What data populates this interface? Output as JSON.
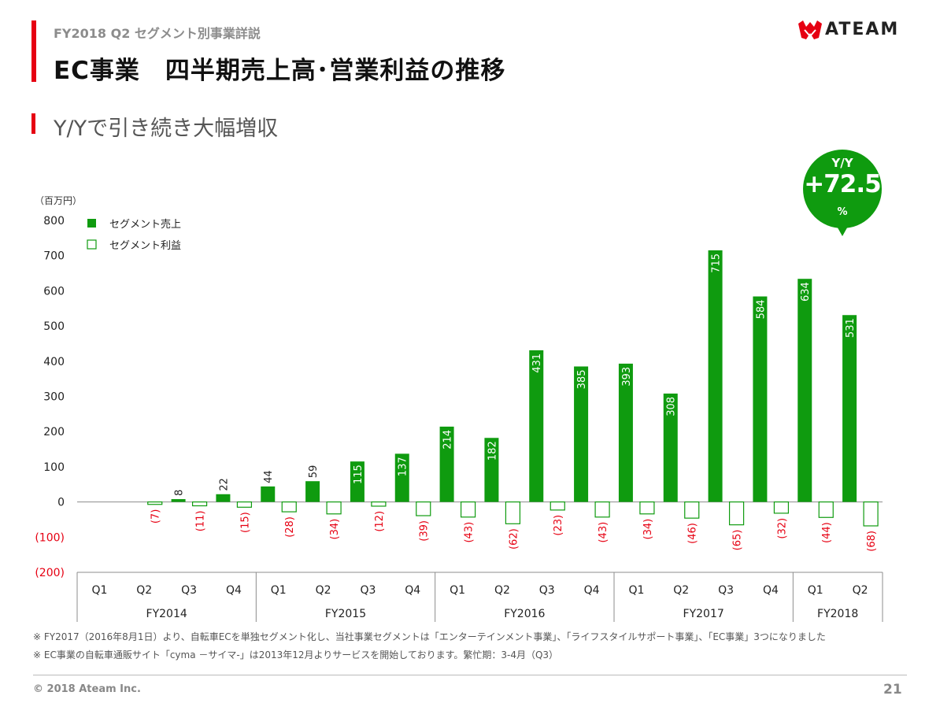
{
  "header": {
    "section": "FY2018 Q2 セグメント別事業詳説",
    "title": "EC事業　四半期売上高･営業利益の推移",
    "subtitle": "Y/Yで引き続き大幅増収",
    "logo_text": "ATEAM"
  },
  "colors": {
    "accent_red": "#e60012",
    "bar_green": "#0f9b0f",
    "negative_label": "#e60012"
  },
  "yy_badge": {
    "label": "Y/Y",
    "value": "+72.5",
    "unit": "%"
  },
  "chart_data": {
    "type": "bar",
    "unit_label": "（百万円）",
    "ylim": [
      -200,
      800
    ],
    "yticks": [
      800,
      700,
      600,
      500,
      400,
      300,
      200,
      100,
      0,
      -100,
      -200
    ],
    "ytick_labels": [
      "800",
      "700",
      "600",
      "500",
      "400",
      "300",
      "200",
      "100",
      "0",
      "(100)",
      "(200)"
    ],
    "grid": false,
    "legend_position": "top-left",
    "categories": [
      "Q1",
      "Q2",
      "Q3",
      "Q4",
      "Q1",
      "Q2",
      "Q3",
      "Q4",
      "Q1",
      "Q2",
      "Q3",
      "Q4",
      "Q1",
      "Q2",
      "Q3",
      "Q4",
      "Q1",
      "Q2"
    ],
    "groups": [
      {
        "label": "FY2014",
        "count": 4
      },
      {
        "label": "FY2015",
        "count": 4
      },
      {
        "label": "FY2016",
        "count": 4
      },
      {
        "label": "FY2017",
        "count": 4
      },
      {
        "label": "FY2018",
        "count": 2
      }
    ],
    "series": [
      {
        "name": "セグメント売上",
        "values": [
          null,
          null,
          8,
          22,
          44,
          59,
          115,
          137,
          214,
          182,
          431,
          385,
          393,
          308,
          715,
          584,
          634,
          531
        ],
        "labels": [
          "",
          "",
          "8",
          "22",
          "44",
          "59",
          "115",
          "137",
          "214",
          "182",
          "431",
          "385",
          "393",
          "308",
          "715",
          "584",
          "634",
          "531"
        ]
      },
      {
        "name": "セグメント利益",
        "values": [
          null,
          -7,
          -11,
          -15,
          -28,
          -34,
          -12,
          -39,
          -43,
          -62,
          -23,
          -43,
          -34,
          -46,
          -65,
          -32,
          -44,
          -68
        ],
        "labels": [
          "",
          "(7)",
          "(11)",
          "(15)",
          "(28)",
          "(34)",
          "(12)",
          "(39)",
          "(43)",
          "(62)",
          "(23)",
          "(43)",
          "(34)",
          "(46)",
          "(65)",
          "(32)",
          "(44)",
          "(68)"
        ]
      }
    ]
  },
  "notes": [
    "※ FY2017（2016年8月1日）より、自転車ECを単独セグメント化し、当社事業セグメントは「エンターテインメント事業」、「ライフスタイルサポート事業」、「EC事業」3つになりました",
    "※ EC事業の自転車通販サイト「cyma －サイマ-」は2013年12月よりサービスを開始しております。繁忙期：3-4月（Q3）"
  ],
  "footer": {
    "copyright": "© 2018 Ateam Inc.",
    "page_number": "21"
  }
}
